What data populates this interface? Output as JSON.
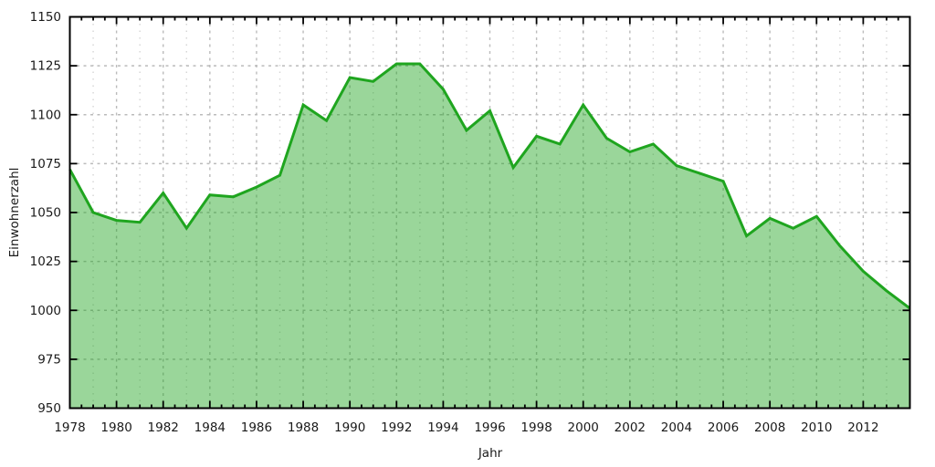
{
  "chart_data": {
    "type": "area",
    "title": "",
    "xlabel": "Jahr",
    "ylabel": "Einwohnerzahl",
    "xlim": [
      1978,
      2014
    ],
    "ylim": [
      950,
      1150
    ],
    "x": [
      1978,
      1979,
      1980,
      1981,
      1982,
      1983,
      1984,
      1985,
      1986,
      1987,
      1988,
      1989,
      1990,
      1991,
      1992,
      1993,
      1994,
      1995,
      1996,
      1997,
      1998,
      1999,
      2000,
      2001,
      2002,
      2003,
      2004,
      2005,
      2006,
      2007,
      2008,
      2009,
      2010,
      2011,
      2012,
      2013,
      2014
    ],
    "values": [
      1072,
      1050,
      1046,
      1045,
      1060,
      1042,
      1059,
      1058,
      1063,
      1069,
      1105,
      1097,
      1119,
      1117,
      1126,
      1126,
      1113,
      1092,
      1102,
      1073,
      1089,
      1085,
      1105,
      1088,
      1081,
      1085,
      1074,
      1070,
      1066,
      1038,
      1047,
      1042,
      1048,
      1033,
      1020,
      1010,
      1001
    ],
    "x_major_ticks": [
      1978,
      1980,
      1982,
      1984,
      1986,
      1988,
      1990,
      1992,
      1994,
      1996,
      1998,
      2000,
      2002,
      2004,
      2006,
      2008,
      2010,
      2012
    ],
    "x_minor_tick_step": 0.5,
    "x_minor_grid_years": [
      1979,
      1981,
      1983,
      1985,
      1987,
      1989,
      1991,
      1993,
      1995,
      1997,
      1999,
      2001,
      2003,
      2005,
      2007,
      2009,
      2011,
      2013
    ],
    "y_ticks": [
      950,
      975,
      1000,
      1025,
      1050,
      1075,
      1100,
      1125,
      1150
    ],
    "grid": "major dashed both axes, faint dotted minor vertical at odd years",
    "legend": "none",
    "colors": {
      "line": "#1fa51f",
      "fill": "#1fa51f",
      "fill_opacity": 0.45,
      "grid_major": "#bbbbbb",
      "grid_minor": "#d5d5d5",
      "border": "#000000",
      "tick": "#000000",
      "tick_label": "#1a1a1a"
    }
  }
}
